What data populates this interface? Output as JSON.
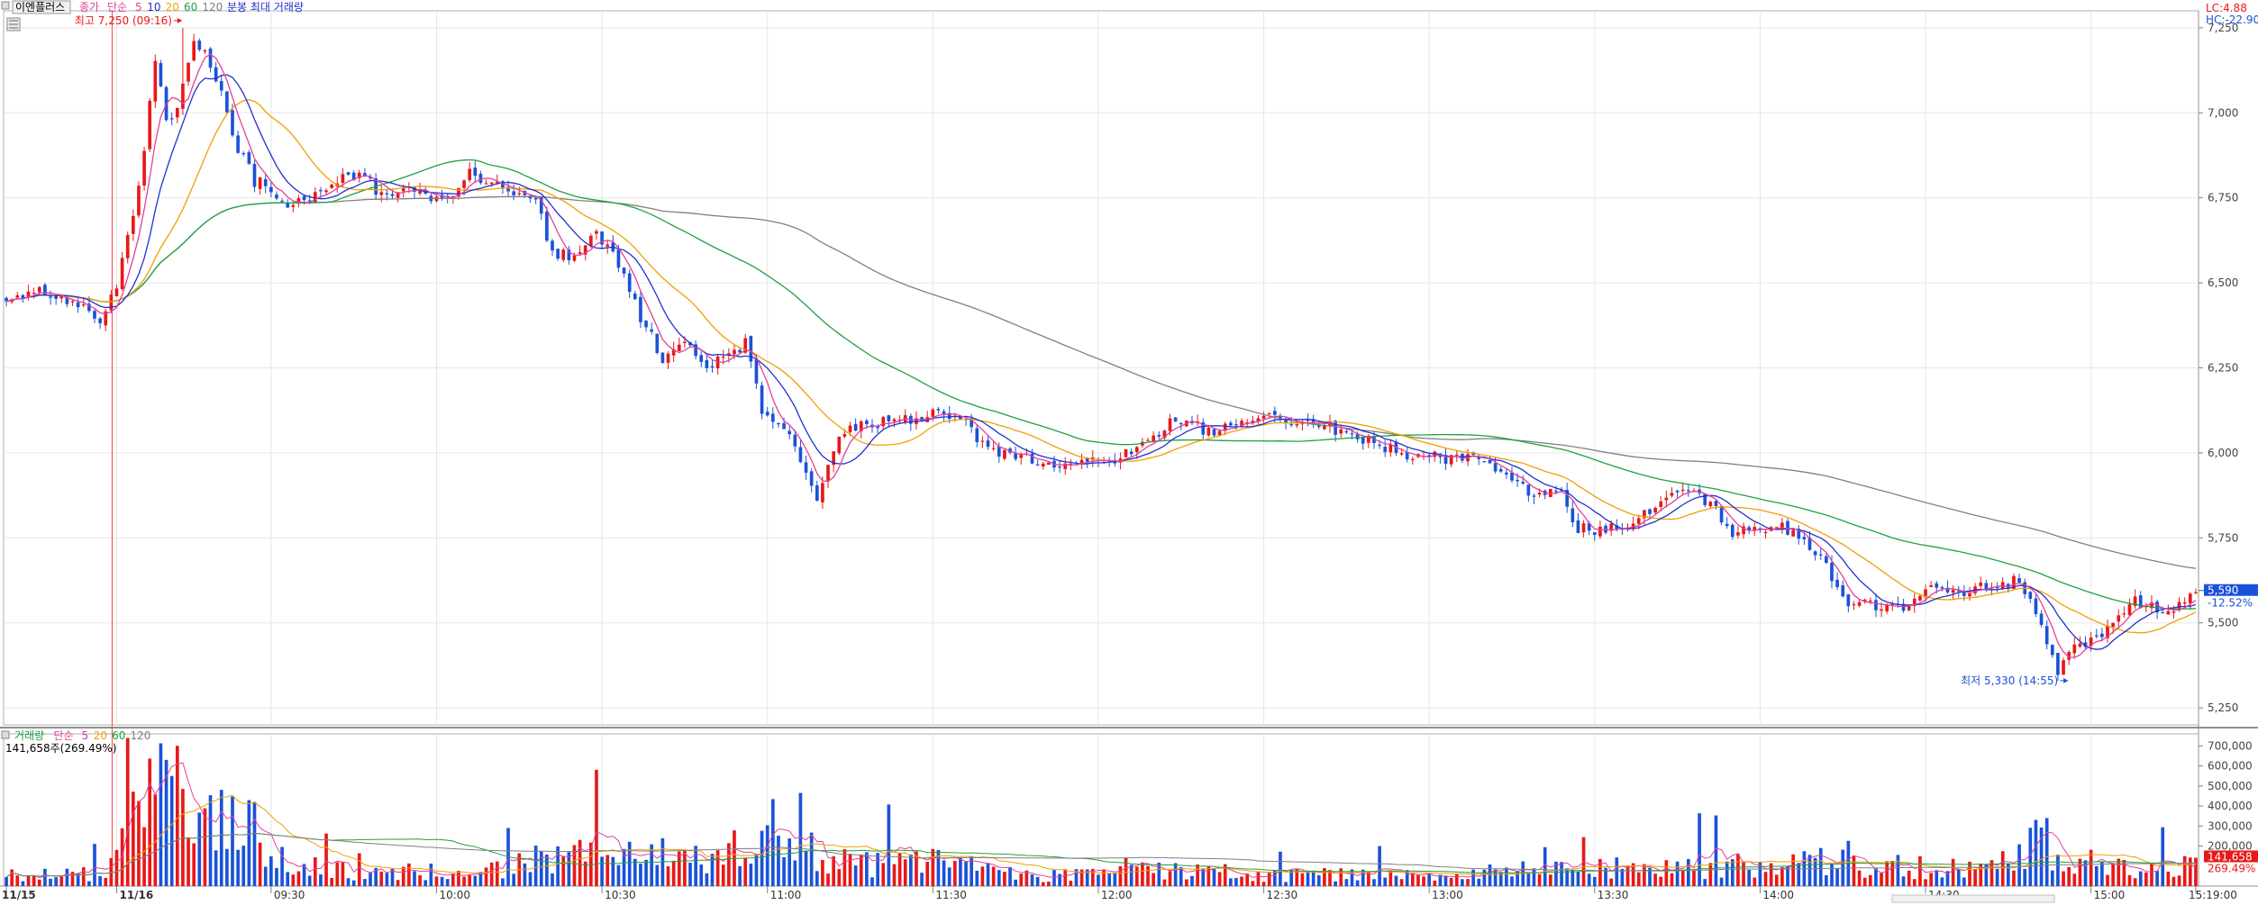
{
  "header": {
    "stock_name": "이엔플러스",
    "indicator_labels": [
      {
        "text": "종가",
        "color": "#e0409a"
      },
      {
        "text": "단순",
        "color": "#e0409a"
      },
      {
        "text": "5",
        "color": "#e0409a"
      },
      {
        "text": "10",
        "color": "#2030d0"
      },
      {
        "text": "20",
        "color": "#f0a000"
      },
      {
        "text": "60",
        "color": "#20a040"
      },
      {
        "text": "120",
        "color": "#808080"
      },
      {
        "text": "분봉 최대 거래량",
        "color": "#2030d0"
      }
    ],
    "lc_label": "LC:4.88",
    "hc_label": "HC:-22.90"
  },
  "volume_header": {
    "labels": [
      {
        "text": "거래량",
        "color": "#20a040"
      },
      {
        "text": "단순",
        "color": "#e0409a"
      },
      {
        "text": "5",
        "color": "#e0409a"
      },
      {
        "text": "20",
        "color": "#f0a000"
      },
      {
        "text": "60",
        "color": "#20a040"
      },
      {
        "text": "120",
        "color": "#808080"
      }
    ],
    "current_text": "141,658주(269.49%)"
  },
  "price_tag": {
    "price": "5,590",
    "change": "-12.52%"
  },
  "volume_tag": {
    "value": "141,658",
    "pct": "269.49%"
  },
  "chart_data": [
    {
      "type": "candlestick",
      "title": "이엔플러스",
      "ylim": [
        5200,
        7300
      ],
      "y_ticks": [
        "7,250",
        "7,000",
        "6,750",
        "6,500",
        "6,250",
        "6,000",
        "5,750",
        "5,500",
        "5,250"
      ],
      "y_tick_values": [
        7250,
        7000,
        6750,
        6500,
        6250,
        6000,
        5750,
        5500,
        5250
      ],
      "x_tick_labels": [
        {
          "label": "11/15",
          "bar": 0
        },
        {
          "label": "11/16",
          "bar": 20
        },
        {
          "label": "09:30",
          "bar": 48
        },
        {
          "label": "10:00",
          "bar": 78
        },
        {
          "label": "10:30",
          "bar": 108
        },
        {
          "label": "11:00",
          "bar": 138
        },
        {
          "label": "11:30",
          "bar": 168
        },
        {
          "label": "12:00",
          "bar": 198
        },
        {
          "label": "12:30",
          "bar": 228
        },
        {
          "label": "13:00",
          "bar": 258
        },
        {
          "label": "13:30",
          "bar": 288
        },
        {
          "label": "14:00",
          "bar": 318
        },
        {
          "label": "14:30",
          "bar": 348
        },
        {
          "label": "15:00",
          "bar": 378
        },
        {
          "label": "15:19:00",
          "bar": 397
        }
      ],
      "day_separator_bar": 20,
      "close_anchors": [
        [
          0,
          6460
        ],
        [
          5,
          6480
        ],
        [
          10,
          6460
        ],
        [
          14,
          6420
        ],
        [
          17,
          6380
        ],
        [
          20,
          6500
        ],
        [
          23,
          6700
        ],
        [
          25,
          6900
        ],
        [
          27,
          7150
        ],
        [
          29,
          6980
        ],
        [
          31,
          7000
        ],
        [
          34,
          7220
        ],
        [
          36,
          7180
        ],
        [
          38,
          7100
        ],
        [
          40,
          7000
        ],
        [
          42,
          6900
        ],
        [
          45,
          6800
        ],
        [
          48,
          6780
        ],
        [
          52,
          6720
        ],
        [
          56,
          6770
        ],
        [
          60,
          6800
        ],
        [
          64,
          6820
        ],
        [
          68,
          6760
        ],
        [
          72,
          6780
        ],
        [
          76,
          6760
        ],
        [
          80,
          6740
        ],
        [
          84,
          6820
        ],
        [
          88,
          6790
        ],
        [
          92,
          6760
        ],
        [
          96,
          6740
        ],
        [
          99,
          6590
        ],
        [
          103,
          6580
        ],
        [
          107,
          6640
        ],
        [
          111,
          6560
        ],
        [
          115,
          6400
        ],
        [
          119,
          6280
        ],
        [
          123,
          6320
        ],
        [
          127,
          6240
        ],
        [
          131,
          6300
        ],
        [
          134,
          6320
        ],
        [
          137,
          6120
        ],
        [
          140,
          6100
        ],
        [
          144,
          5980
        ],
        [
          147,
          5850
        ],
        [
          150,
          6020
        ],
        [
          153,
          6080
        ],
        [
          157,
          6080
        ],
        [
          161,
          6100
        ],
        [
          165,
          6090
        ],
        [
          169,
          6120
        ],
        [
          173,
          6100
        ],
        [
          176,
          6040
        ],
        [
          180,
          6000
        ],
        [
          184,
          5990
        ],
        [
          188,
          5970
        ],
        [
          192,
          5960
        ],
        [
          196,
          5970
        ],
        [
          200,
          5970
        ],
        [
          204,
          6000
        ],
        [
          208,
          6050
        ],
        [
          212,
          6100
        ],
        [
          215,
          6080
        ],
        [
          219,
          6060
        ],
        [
          223,
          6090
        ],
        [
          227,
          6100
        ],
        [
          231,
          6100
        ],
        [
          235,
          6090
        ],
        [
          239,
          6080
        ],
        [
          243,
          6060
        ],
        [
          247,
          6040
        ],
        [
          251,
          6010
        ],
        [
          255,
          5990
        ],
        [
          258,
          6000
        ],
        [
          262,
          5980
        ],
        [
          266,
          5980
        ],
        [
          270,
          5950
        ],
        [
          274,
          5900
        ],
        [
          278,
          5880
        ],
        [
          282,
          5880
        ],
        [
          285,
          5780
        ],
        [
          289,
          5770
        ],
        [
          293,
          5790
        ],
        [
          297,
          5820
        ],
        [
          301,
          5880
        ],
        [
          305,
          5900
        ],
        [
          309,
          5850
        ],
        [
          313,
          5760
        ],
        [
          317,
          5780
        ],
        [
          321,
          5790
        ],
        [
          325,
          5760
        ],
        [
          329,
          5700
        ],
        [
          333,
          5560
        ],
        [
          337,
          5560
        ],
        [
          341,
          5550
        ],
        [
          345,
          5540
        ],
        [
          349,
          5620
        ],
        [
          353,
          5580
        ],
        [
          357,
          5600
        ],
        [
          361,
          5620
        ],
        [
          365,
          5620
        ],
        [
          369,
          5500
        ],
        [
          372,
          5350
        ],
        [
          375,
          5430
        ],
        [
          378,
          5450
        ],
        [
          382,
          5500
        ],
        [
          386,
          5560
        ],
        [
          390,
          5540
        ],
        [
          394,
          5550
        ],
        [
          397,
          5590
        ]
      ],
      "annotations": [
        {
          "text": "최고 7,250 (09:16)",
          "price": 7250,
          "bar": 32,
          "side": "left"
        },
        {
          "text": "최저 5,330 (14:55)",
          "price": 5330,
          "bar": 374,
          "side": "left"
        }
      ],
      "moving_averages": [
        {
          "name": "5",
          "color": "#e0409a"
        },
        {
          "name": "10",
          "color": "#2030d0"
        },
        {
          "name": "20",
          "color": "#f0a000"
        },
        {
          "name": "60",
          "color": "#20a040"
        },
        {
          "name": "120",
          "color": "#808080"
        }
      ],
      "last_price": 5590
    },
    {
      "type": "bar",
      "title": "거래량",
      "ylim": [
        0,
        760000
      ],
      "y_ticks": [
        "700,000",
        "600,000",
        "500,000",
        "400,000",
        "300,000",
        "200,000"
      ],
      "y_tick_values": [
        700000,
        600000,
        500000,
        400000,
        300000,
        200000
      ],
      "volume_anchors": [
        [
          0,
          50000
        ],
        [
          18,
          60000
        ],
        [
          20,
          350000
        ],
        [
          22,
          720000
        ],
        [
          24,
          500000
        ],
        [
          26,
          450000
        ],
        [
          28,
          600000
        ],
        [
          30,
          400000
        ],
        [
          32,
          500000
        ],
        [
          34,
          420000
        ],
        [
          36,
          550000
        ],
        [
          38,
          350000
        ],
        [
          40,
          460000
        ],
        [
          42,
          250000
        ],
        [
          44,
          300000
        ],
        [
          46,
          250000
        ],
        [
          48,
          150000
        ],
        [
          55,
          90000
        ],
        [
          65,
          70000
        ],
        [
          75,
          80000
        ],
        [
          85,
          70000
        ],
        [
          95,
          120000
        ],
        [
          105,
          150000
        ],
        [
          115,
          160000
        ],
        [
          125,
          150000
        ],
        [
          135,
          180000
        ],
        [
          140,
          300000
        ],
        [
          145,
          250000
        ],
        [
          150,
          120000
        ],
        [
          160,
          100000
        ],
        [
          170,
          120000
        ],
        [
          180,
          70000
        ],
        [
          190,
          50000
        ],
        [
          200,
          60000
        ],
        [
          210,
          90000
        ],
        [
          220,
          70000
        ],
        [
          230,
          50000
        ],
        [
          240,
          60000
        ],
        [
          250,
          50000
        ],
        [
          260,
          60000
        ],
        [
          270,
          70000
        ],
        [
          280,
          90000
        ],
        [
          290,
          100000
        ],
        [
          300,
          80000
        ],
        [
          310,
          90000
        ],
        [
          320,
          110000
        ],
        [
          330,
          120000
        ],
        [
          340,
          110000
        ],
        [
          350,
          90000
        ],
        [
          360,
          80000
        ],
        [
          366,
          200000
        ],
        [
          368,
          280000
        ],
        [
          372,
          150000
        ],
        [
          380,
          100000
        ],
        [
          390,
          90000
        ],
        [
          397,
          141658
        ]
      ]
    }
  ]
}
